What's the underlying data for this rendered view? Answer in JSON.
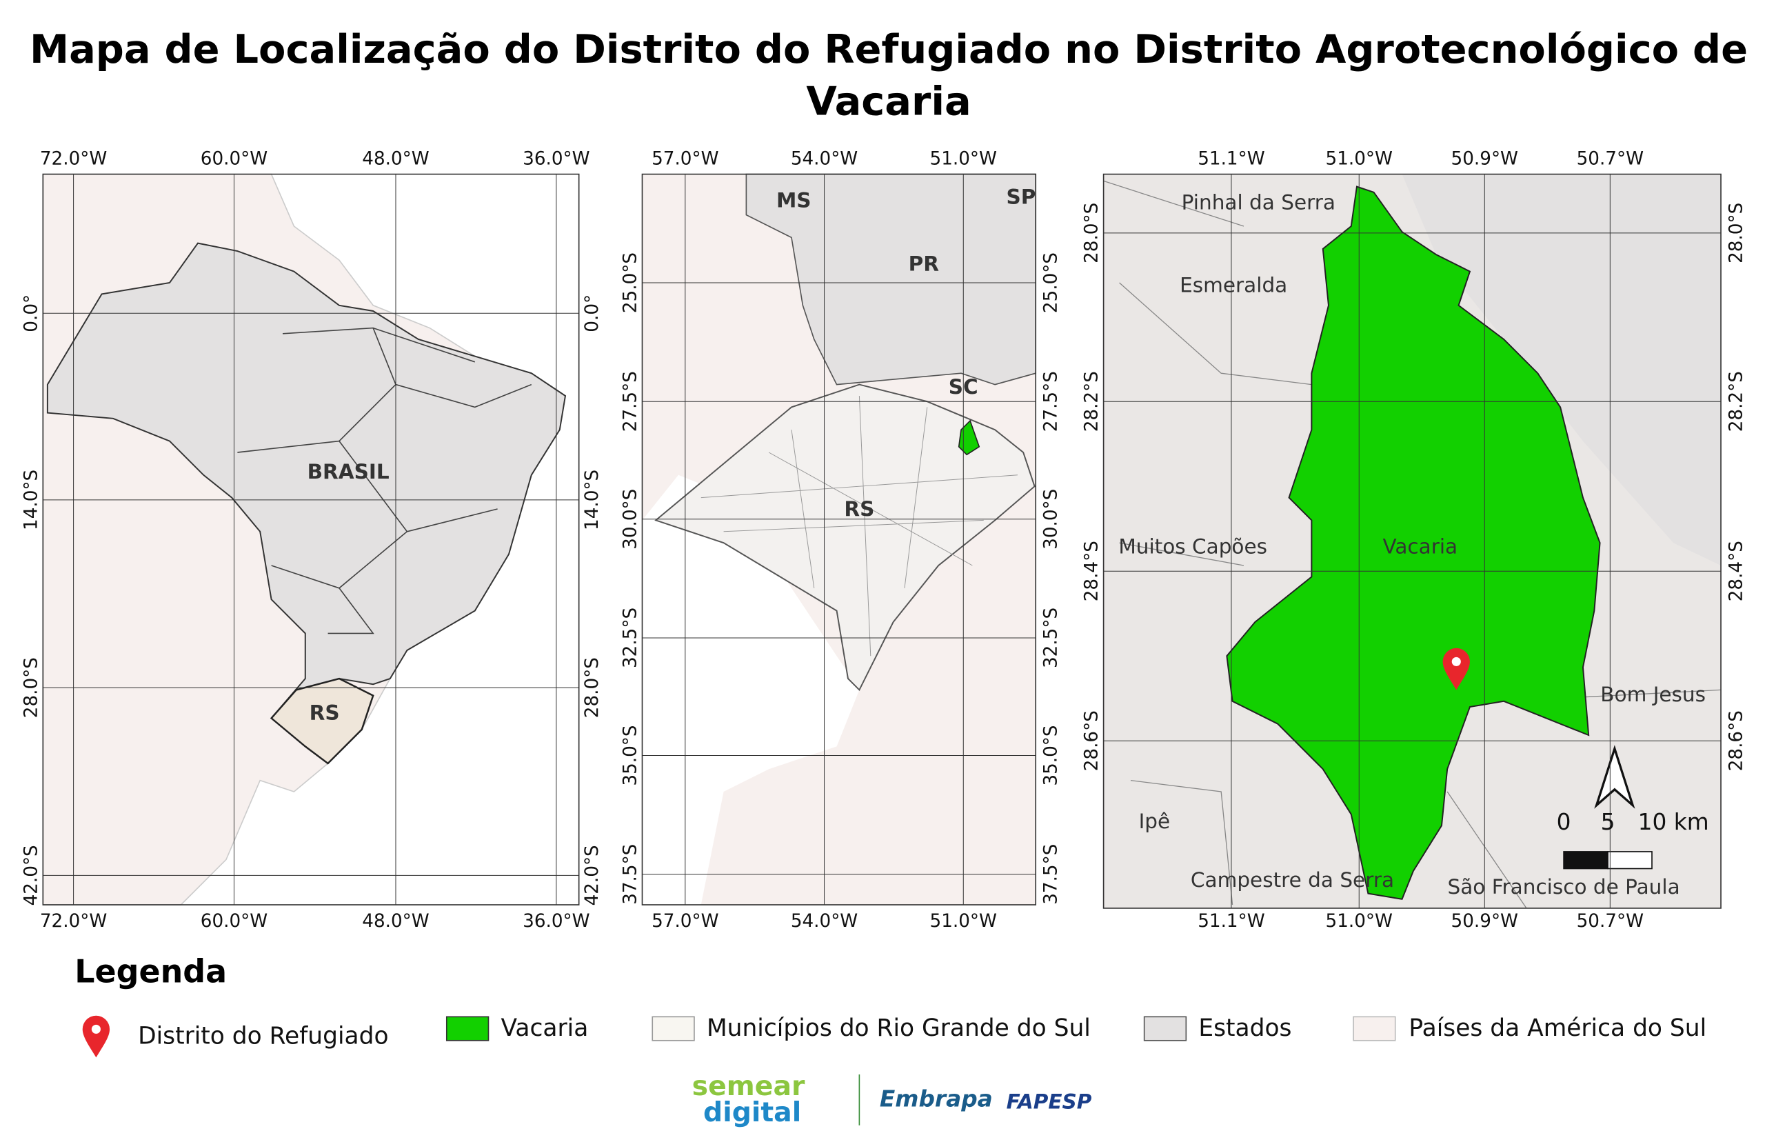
{
  "title": "Mapa de Localização do Distrito do Refugiado no Distrito Agrotecnológico de",
  "title_line2": "Vacaria",
  "maps": [
    {
      "xticks": [
        "72.0°W",
        "60.0°W",
        "48.0°W",
        "36.0°W"
      ],
      "yticks": [
        "0.0°",
        "14.0°S",
        "28.0°S",
        "42.0°S"
      ],
      "labels": [
        "BRASIL",
        "RS"
      ]
    },
    {
      "xticks": [
        "57.0°W",
        "54.0°W",
        "51.0°W"
      ],
      "yticks": [
        "25.0°S",
        "27.5°S",
        "30.0°S",
        "32.5°S",
        "35.0°S",
        "37.5°S"
      ],
      "labels": [
        "MS",
        "PR",
        "SC",
        "SP",
        "RS"
      ]
    },
    {
      "xticks": [
        "51.1°W",
        "51.0°W",
        "50.9°W",
        "50.7°W"
      ],
      "yticks": [
        "28.0°S",
        "28.2°S",
        "28.4°S",
        "28.6°S"
      ],
      "labels": [
        "Pinhal da Serra",
        "Esmeralda",
        "Muitos Capões",
        "Vacaria",
        "Bom Jesus",
        "Ipê",
        "Campestre da Serra",
        "São Francisco de Paula"
      ],
      "scale": [
        "0",
        "5",
        "10 km"
      ]
    }
  ],
  "legend": {
    "title": "Legenda",
    "items": [
      "Distrito do Refugiado",
      "Vacaria",
      "Municípios do Rio Grande do Sul",
      "Estados",
      "Países da América do Sul"
    ]
  },
  "logos": [
    "semear",
    "digital",
    "Embrapa",
    "FAPESP"
  ]
}
